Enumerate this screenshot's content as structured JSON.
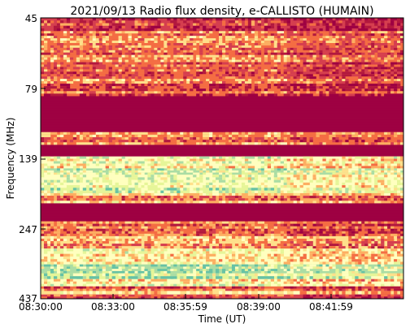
{
  "chart_data": {
    "type": "heatmap",
    "title": "2021/09/13  Radio flux density, e-CALLISTO (HUMAIN)",
    "xlabel": "Time (UT)",
    "ylabel": "Frequency (MHz)",
    "x_ticks": [
      "08:30:00",
      "08:33:00",
      "08:35:59",
      "08:39:00",
      "08:41:59"
    ],
    "y_ticks": [
      "45",
      "79",
      "139",
      "247",
      "437"
    ],
    "time_range": [
      "08:30:00",
      "08:45:00"
    ],
    "frequency_range_mhz": [
      45,
      437
    ],
    "y_axis_inverted": true,
    "colormap": "Spectral_r",
    "colors": {
      "saturated_low": "#9e0142",
      "dark_red": "#b2183e",
      "red": "#d53e4f",
      "orange": "#f46d43",
      "light_orange": "#fdae61",
      "yellow": "#fee08b",
      "pale": "#ffffbf",
      "light_green": "#e6f598",
      "green": "#abdda4",
      "teal": "#66c2a5"
    },
    "bands": [
      {
        "freq_start": 45,
        "freq_end": 50,
        "level": 0.25
      },
      {
        "freq_start": 50,
        "freq_end": 76,
        "level": 0.38
      },
      {
        "freq_start": 76,
        "freq_end": 84,
        "level": 0.3
      },
      {
        "freq_start": 84,
        "freq_end": 112,
        "level": 0.0
      },
      {
        "freq_start": 112,
        "freq_end": 124,
        "level": 0.35
      },
      {
        "freq_start": 124,
        "freq_end": 136,
        "level": 0.0
      },
      {
        "freq_start": 136,
        "freq_end": 150,
        "level": 0.62
      },
      {
        "freq_start": 150,
        "freq_end": 158,
        "level": 0.85
      },
      {
        "freq_start": 158,
        "freq_end": 176,
        "level": 0.6
      },
      {
        "freq_start": 176,
        "freq_end": 184,
        "level": 0.75
      },
      {
        "freq_start": 184,
        "freq_end": 200,
        "level": 0.45
      },
      {
        "freq_start": 200,
        "freq_end": 232,
        "level": 0.0
      },
      {
        "freq_start": 232,
        "freq_end": 262,
        "level": 0.32
      },
      {
        "freq_start": 262,
        "freq_end": 290,
        "level": 0.5
      },
      {
        "freq_start": 290,
        "freq_end": 330,
        "level": 0.62
      },
      {
        "freq_start": 330,
        "freq_end": 355,
        "level": 0.82
      },
      {
        "freq_start": 355,
        "freq_end": 372,
        "level": 0.78
      },
      {
        "freq_start": 372,
        "freq_end": 395,
        "level": 0.6
      },
      {
        "freq_start": 395,
        "freq_end": 410,
        "level": 0.35
      },
      {
        "freq_start": 410,
        "freq_end": 422,
        "level": 0.5
      },
      {
        "freq_start": 422,
        "freq_end": 437,
        "level": 0.2
      }
    ],
    "grid": false,
    "legend": "none"
  }
}
